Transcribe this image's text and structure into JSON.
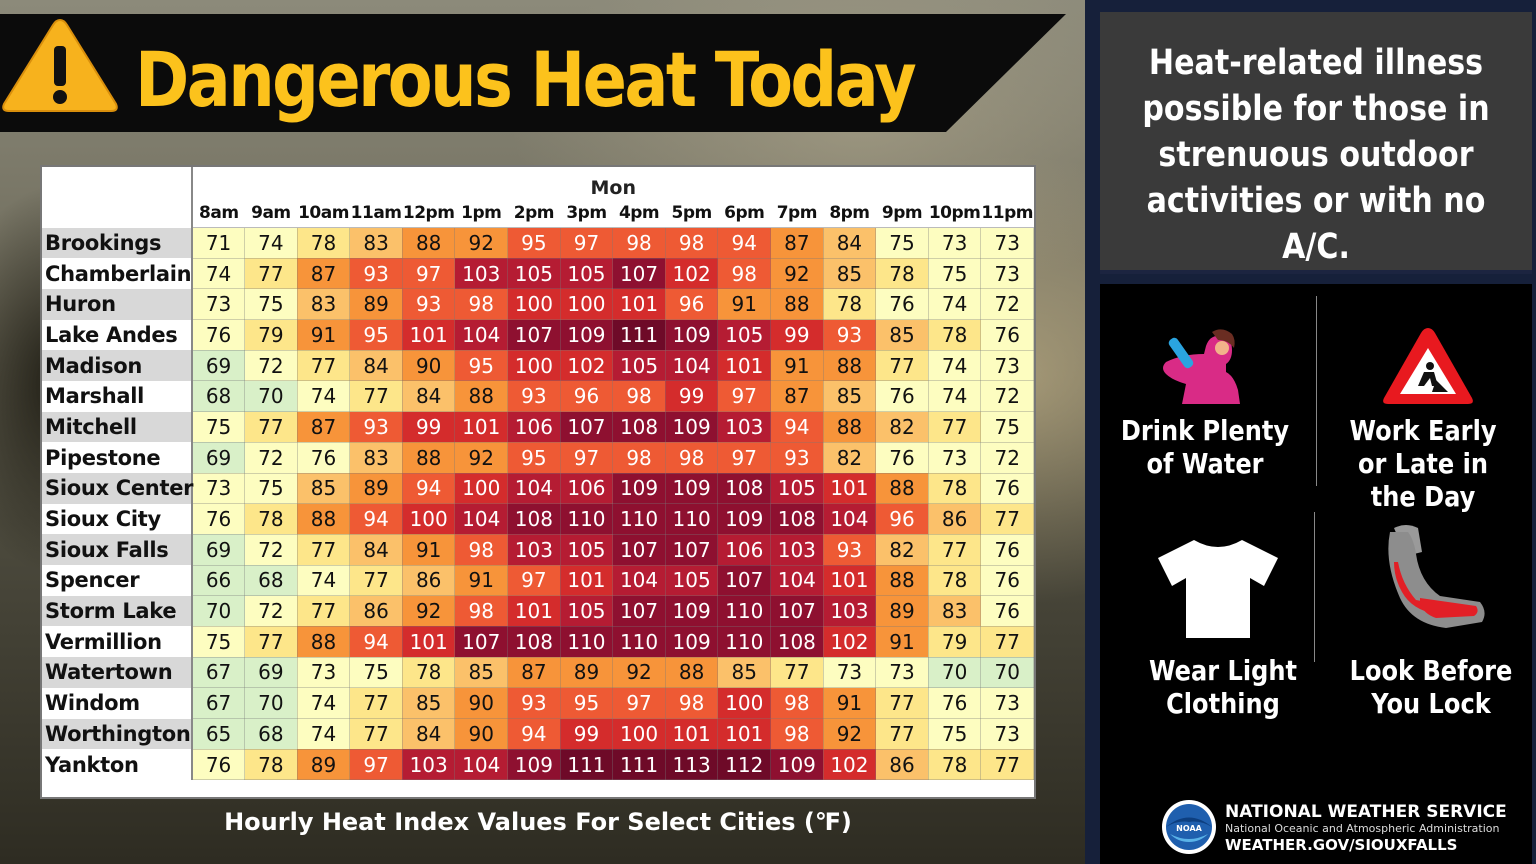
{
  "title": "Dangerous Heat Today",
  "message": "Heat-related illness possible for those in strenuous outdoor activities or with no A/C.",
  "caption": "Hourly Heat Index Values For Select Cities (℉)",
  "tips": [
    {
      "label": "Drink Plenty of Water",
      "icon": "drink-water-icon"
    },
    {
      "label": "Work Early or Late in the Day",
      "icon": "road-work-sign-icon"
    },
    {
      "label": "Wear Light Clothing",
      "icon": "t-shirt-icon"
    },
    {
      "label": "Look Before You Lock",
      "icon": "car-seat-icon"
    }
  ],
  "footer": {
    "org": "NATIONAL WEATHER SERVICE",
    "sub": "National Oceanic and Atmospheric Administration",
    "url": "WEATHER.GOV/SIOUXFALLS"
  },
  "colors": {
    "title": "#fcc21c",
    "scale": [
      "#d9f0c8",
      "#fdfdc0",
      "#fde68a",
      "#fbc16a",
      "#f7943a",
      "#ee5a34",
      "#d42c2c",
      "#b51c33",
      "#8e1030",
      "#6e0a28"
    ]
  },
  "chart_data": {
    "type": "table",
    "day": "Mon",
    "columns": [
      "8am",
      "9am",
      "10am",
      "11am",
      "12pm",
      "1pm",
      "2pm",
      "3pm",
      "4pm",
      "5pm",
      "6pm",
      "7pm",
      "8pm",
      "9pm",
      "10pm",
      "11pm"
    ],
    "rows": [
      {
        "city": "Brookings",
        "values": [
          71,
          74,
          78,
          83,
          88,
          92,
          95,
          97,
          98,
          98,
          94,
          87,
          84,
          75,
          73,
          73
        ]
      },
      {
        "city": "Chamberlain",
        "values": [
          74,
          77,
          87,
          93,
          97,
          103,
          105,
          105,
          107,
          102,
          98,
          92,
          85,
          78,
          75,
          73
        ]
      },
      {
        "city": "Huron",
        "values": [
          73,
          75,
          83,
          89,
          93,
          98,
          100,
          100,
          101,
          96,
          91,
          88,
          78,
          76,
          74,
          72
        ]
      },
      {
        "city": "Lake Andes",
        "values": [
          76,
          79,
          91,
          95,
          101,
          104,
          107,
          109,
          111,
          109,
          105,
          99,
          93,
          85,
          78,
          76
        ]
      },
      {
        "city": "Madison",
        "values": [
          69,
          72,
          77,
          84,
          90,
          95,
          100,
          102,
          105,
          104,
          101,
          91,
          88,
          77,
          74,
          73
        ]
      },
      {
        "city": "Marshall",
        "values": [
          68,
          70,
          74,
          77,
          84,
          88,
          93,
          96,
          98,
          99,
          97,
          87,
          85,
          76,
          74,
          72
        ]
      },
      {
        "city": "Mitchell",
        "values": [
          75,
          77,
          87,
          93,
          99,
          101,
          106,
          107,
          108,
          109,
          103,
          94,
          88,
          82,
          77,
          75
        ]
      },
      {
        "city": "Pipestone",
        "values": [
          69,
          72,
          76,
          83,
          88,
          92,
          95,
          97,
          98,
          98,
          97,
          93,
          82,
          76,
          73,
          72
        ]
      },
      {
        "city": "Sioux Center",
        "values": [
          73,
          75,
          85,
          89,
          94,
          100,
          104,
          106,
          109,
          109,
          108,
          105,
          101,
          88,
          78,
          76
        ]
      },
      {
        "city": "Sioux City",
        "values": [
          76,
          78,
          88,
          94,
          100,
          104,
          108,
          110,
          110,
          110,
          109,
          108,
          104,
          96,
          86,
          77
        ]
      },
      {
        "city": "Sioux Falls",
        "values": [
          69,
          72,
          77,
          84,
          91,
          98,
          103,
          105,
          107,
          107,
          106,
          103,
          93,
          82,
          77,
          76
        ]
      },
      {
        "city": "Spencer",
        "values": [
          66,
          68,
          74,
          77,
          86,
          91,
          97,
          101,
          104,
          105,
          107,
          104,
          101,
          88,
          78,
          76
        ]
      },
      {
        "city": "Storm Lake",
        "values": [
          70,
          72,
          77,
          86,
          92,
          98,
          101,
          105,
          107,
          109,
          110,
          107,
          103,
          89,
          83,
          76
        ]
      },
      {
        "city": "Vermillion",
        "values": [
          75,
          77,
          88,
          94,
          101,
          107,
          108,
          110,
          110,
          109,
          110,
          108,
          102,
          91,
          79,
          77
        ]
      },
      {
        "city": "Watertown",
        "values": [
          67,
          69,
          73,
          75,
          78,
          85,
          87,
          89,
          92,
          88,
          85,
          77,
          73,
          73,
          70,
          70
        ]
      },
      {
        "city": "Windom",
        "values": [
          67,
          70,
          74,
          77,
          85,
          90,
          93,
          95,
          97,
          98,
          100,
          98,
          91,
          77,
          76,
          73
        ]
      },
      {
        "city": "Worthington",
        "values": [
          65,
          68,
          74,
          77,
          84,
          90,
          94,
          99,
          100,
          101,
          101,
          98,
          92,
          77,
          75,
          73
        ]
      },
      {
        "city": "Yankton",
        "values": [
          76,
          78,
          89,
          97,
          103,
          104,
          109,
          111,
          111,
          113,
          112,
          109,
          102,
          86,
          78,
          77
        ]
      }
    ]
  }
}
